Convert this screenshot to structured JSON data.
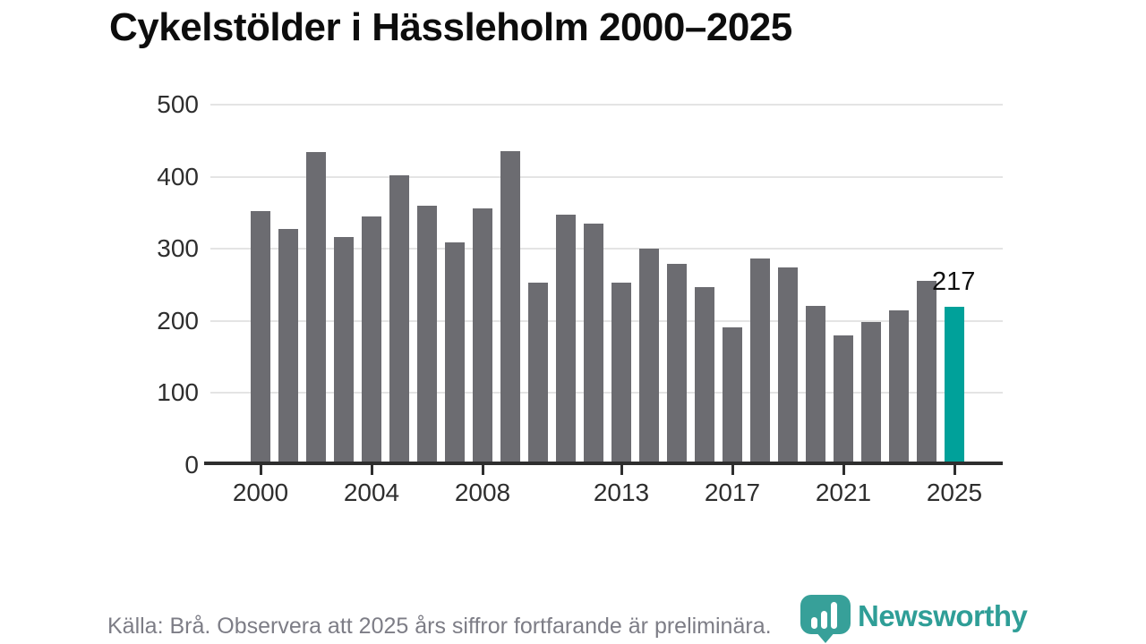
{
  "title": "Cykelstölder i Hässleholm 2000–2025",
  "annotation": {
    "label": "217"
  },
  "footer": {
    "source": "Källa: Brå. Observera att 2025 års siffror fortfarande är preliminära."
  },
  "logo": {
    "name": "Newsworthy",
    "icon": "newsworthy-pin-barchart-icon"
  },
  "colors": {
    "bar": "#6c6c71",
    "highlight": "#00a19a",
    "axis": "#2e2e2e",
    "gridline": "#e4e4e4",
    "tick_text": "#2e2e2e",
    "footer_text": "#7d7d86",
    "logo_teal": "#37a099",
    "wordmark_teal": "#2f9e97",
    "title_text": "#0d0d0d"
  },
  "chart_data": {
    "type": "bar",
    "title": "Cykelstölder i Hässleholm 2000–2025",
    "categories": [
      2000,
      2001,
      2002,
      2003,
      2004,
      2005,
      2006,
      2007,
      2008,
      2009,
      2010,
      2011,
      2012,
      2013,
      2014,
      2015,
      2016,
      2017,
      2018,
      2019,
      2020,
      2021,
      2022,
      2023,
      2024,
      2025
    ],
    "values": [
      350,
      325,
      432,
      314,
      343,
      400,
      357,
      307,
      353,
      433,
      250,
      345,
      332,
      251,
      298,
      277,
      245,
      188,
      284,
      272,
      218,
      177,
      196,
      212,
      253,
      217
    ],
    "highlight_index": 25,
    "highlight_year": 2025,
    "value_label": {
      "year": 2025,
      "text": "217"
    },
    "xlabel": "",
    "ylabel": "",
    "ylim": [
      0,
      500
    ],
    "yticks": [
      0,
      100,
      200,
      300,
      400,
      500
    ],
    "xticks": [
      2000,
      2004,
      2008,
      2013,
      2017,
      2021,
      2025
    ],
    "grid": "horizontal",
    "legend_position": "none",
    "bar_color": "#6c6c71",
    "highlight_color": "#00a19a"
  }
}
